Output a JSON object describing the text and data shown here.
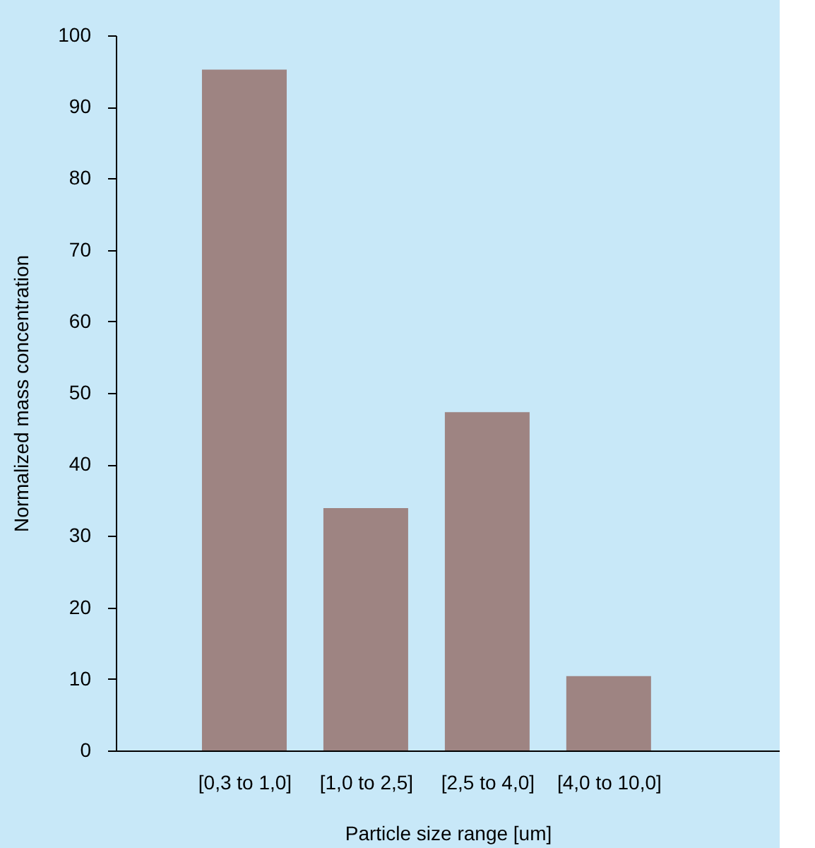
{
  "chart_data": {
    "type": "bar",
    "xlabel": "Particle size range [um]",
    "ylabel": "Normalized mass concentration",
    "categories": [
      "[0,3 to 1,0]",
      "[1,0 to 2,5]",
      "[2,5 to 4,0]",
      "[4,0 to 10,0]"
    ],
    "values": [
      95.2,
      33.9,
      47.3,
      10.4
    ],
    "color": "#9e8482",
    "ylim": [
      0,
      100
    ],
    "yticks": [
      0,
      10,
      20,
      30,
      40,
      50,
      60,
      70,
      80,
      90,
      100
    ],
    "grid": false
  }
}
